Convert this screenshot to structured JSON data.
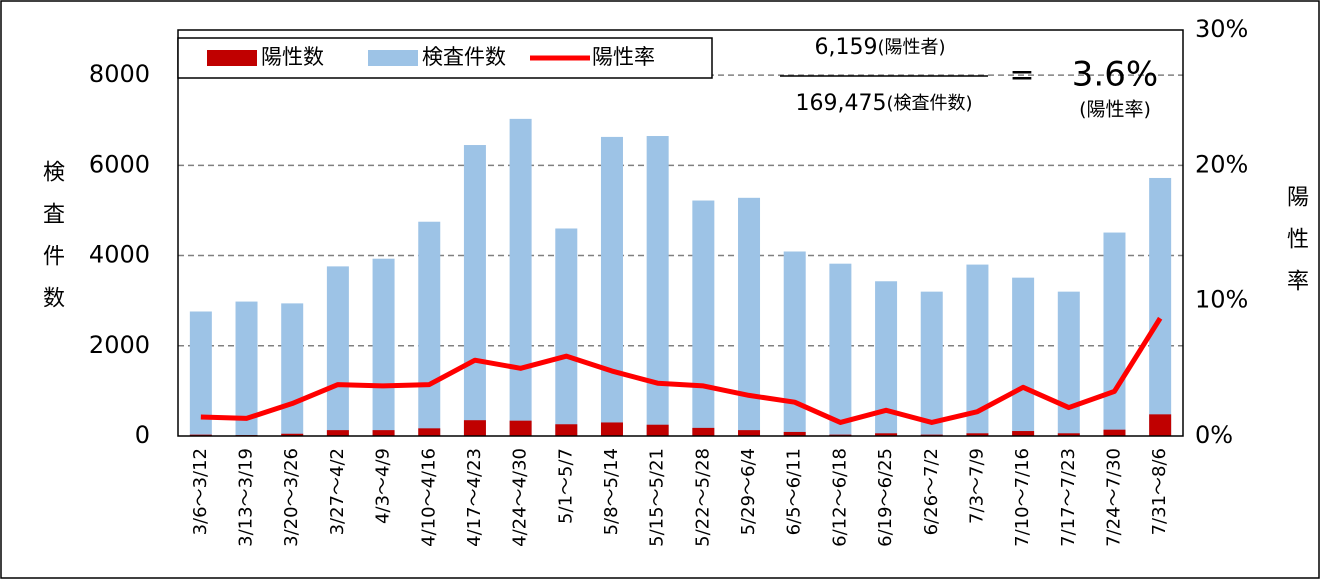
{
  "chart_data": {
    "type": "bar",
    "categories": [
      "3/6～3/12",
      "3/13～3/19",
      "3/20～3/26",
      "3/27～4/2",
      "4/3～4/9",
      "4/10～4/16",
      "4/17～4/23",
      "4/24～4/30",
      "5/1～5/7",
      "5/8～5/14",
      "5/15～5/21",
      "5/22～5/28",
      "5/29～6/4",
      "6/5～6/11",
      "6/12～6/18",
      "6/19～6/25",
      "6/26～7/2",
      "7/3～7/9",
      "7/10～7/16",
      "7/17～7/23",
      "7/24～7/30",
      "7/31～8/6"
    ],
    "series": [
      {
        "name": "検査件数",
        "type": "bar",
        "color": "#9dc3e6",
        "values": [
          2760,
          2980,
          2940,
          3760,
          3930,
          4750,
          6450,
          7030,
          4600,
          6630,
          6650,
          5220,
          5280,
          4090,
          3820,
          3430,
          3200,
          3800,
          3510,
          3200,
          4510,
          5720
        ]
      },
      {
        "name": "陽性数",
        "type": "bar",
        "color": "#c00000",
        "values": [
          30,
          20,
          50,
          130,
          130,
          170,
          350,
          340,
          260,
          300,
          250,
          180,
          130,
          90,
          30,
          60,
          30,
          60,
          110,
          60,
          140,
          480
        ]
      },
      {
        "name": "陽性率",
        "type": "line",
        "axis": "y2",
        "color": "#ff0000",
        "values": [
          1.4,
          1.3,
          2.4,
          3.8,
          3.7,
          3.8,
          5.6,
          5.0,
          5.9,
          4.8,
          3.9,
          3.7,
          3.0,
          2.5,
          1.0,
          1.9,
          1.0,
          1.8,
          3.6,
          2.1,
          3.3,
          8.7
        ]
      }
    ],
    "y_label": "検査件数",
    "y2_label": "陽性率",
    "ylim": [
      0,
      9000
    ],
    "yticks": [
      0,
      2000,
      4000,
      6000,
      8000
    ],
    "y2lim": [
      0,
      30
    ],
    "y2ticks": [
      {
        "value": 0,
        "label": "0%"
      },
      {
        "value": 10,
        "label": "10%"
      },
      {
        "value": 20,
        "label": "20%"
      },
      {
        "value": 30,
        "label": "30%"
      }
    ],
    "grid": true,
    "annotation": {
      "numerator": "6,159",
      "numerator_label": "(陽性者)",
      "denominator": "169,475",
      "denominator_label": "(検査件数)",
      "equals": "=",
      "rate": "3.6%",
      "rate_label": "(陽性率)"
    }
  }
}
